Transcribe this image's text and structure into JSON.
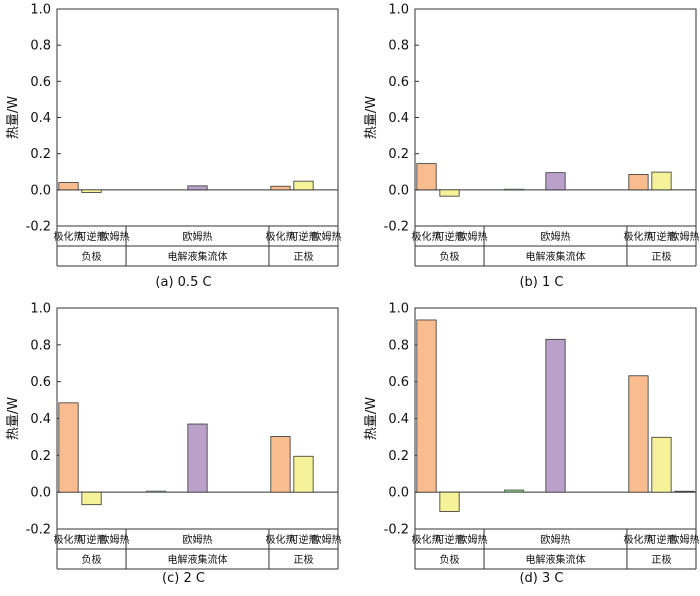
{
  "colors": {
    "polarization": "#F8BC8E",
    "reversible": "#F6F29A",
    "ohmic": "#B9A1C9",
    "ohmic_electrolyte": "#7FB77E",
    "stroke": "#333333"
  },
  "chart_data": [
    {
      "type": "bar",
      "title": "(a) 0.5 C",
      "ylabel": "热量/W",
      "ylim": [
        -0.2,
        1.0
      ],
      "yticks": [
        "1.0",
        "0.8",
        "0.6",
        "0.4",
        "0.2",
        "0.0",
        "-0.2"
      ],
      "categories": [
        "极化热",
        "可逆热",
        "欧姆热",
        "欧姆热",
        "极化热",
        "可逆热",
        "欧姆热"
      ],
      "groups": [
        "负极",
        "电解液集流体",
        "正极"
      ],
      "values": [
        0.04,
        -0.015,
        0.0,
        0.022,
        0.02,
        0.048,
        0.0
      ]
    },
    {
      "type": "bar",
      "title": "(b) 1 C",
      "ylabel": "热量/W",
      "ylim": [
        -0.2,
        1.0
      ],
      "yticks": [
        "1.0",
        "0.8",
        "0.6",
        "0.4",
        "0.2",
        "0.0",
        "-0.2"
      ],
      "categories": [
        "极化热",
        "可逆热",
        "欧姆热",
        "欧姆热",
        "极化热",
        "可逆热",
        "欧姆热"
      ],
      "groups": [
        "负极",
        "电解液集流体",
        "正极"
      ],
      "values": [
        0.145,
        -0.035,
        0.0,
        0.095,
        0.085,
        0.098,
        0.0
      ],
      "electrolyte_value": 0.004
    },
    {
      "type": "bar",
      "title": "(c) 2 C",
      "ylabel": "热量/W",
      "ylim": [
        -0.2,
        1.0
      ],
      "yticks": [
        "1.0",
        "0.8",
        "0.6",
        "0.4",
        "0.2",
        "0.0",
        "-0.2"
      ],
      "categories": [
        "极化热",
        "可逆热",
        "欧姆热",
        "欧姆热",
        "极化热",
        "可逆热",
        "欧姆热"
      ],
      "groups": [
        "负极",
        "电解液集流体",
        "正极"
      ],
      "values": [
        0.485,
        -0.068,
        0.0,
        0.37,
        0.302,
        0.195,
        0.0
      ],
      "electrolyte_value": 0.006
    },
    {
      "type": "bar",
      "title": "(d) 3 C",
      "ylabel": "热量/W",
      "ylim": [
        -0.2,
        1.0
      ],
      "yticks": [
        "1.0",
        "0.8",
        "0.6",
        "0.4",
        "0.2",
        "0.0",
        "-0.2"
      ],
      "categories": [
        "极化热",
        "可逆热",
        "欧姆热",
        "欧姆热",
        "极化热",
        "可逆热",
        "欧姆热"
      ],
      "groups": [
        "负极",
        "电解液集流体",
        "正极"
      ],
      "values": [
        0.935,
        -0.105,
        0.0,
        0.83,
        0.632,
        0.298,
        0.005
      ],
      "electrolyte_value": 0.012
    }
  ]
}
